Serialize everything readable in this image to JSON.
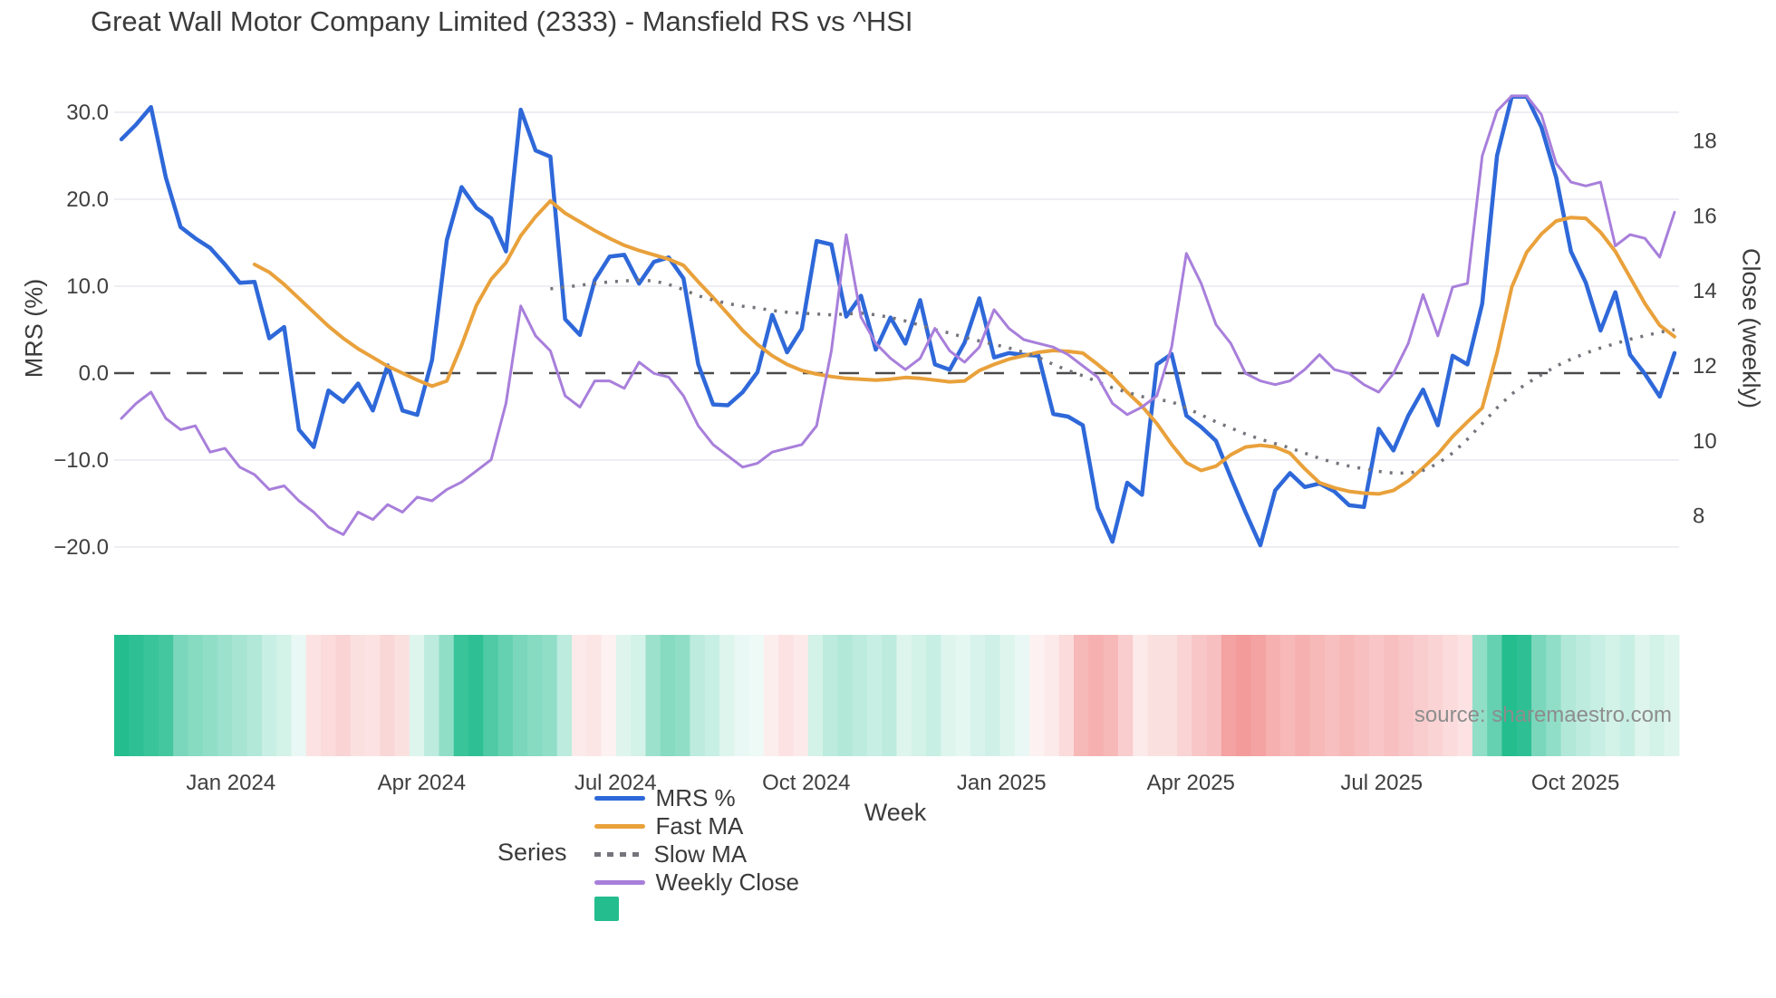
{
  "title": "Great Wall Motor Company Limited (2333) - Mansfield RS vs ^HSI",
  "source_note": "source: sharemaestro.com",
  "axes": {
    "left": {
      "title": "MRS (%)"
    },
    "right": {
      "title": "Close (weekly)"
    },
    "x": {
      "label": "Week"
    }
  },
  "legend": {
    "title": "Series",
    "items": [
      {
        "label": "MRS %",
        "color": "#2e68d9",
        "type": "line"
      },
      {
        "label": "Fast MA",
        "color": "#e9a13b",
        "type": "line"
      },
      {
        "label": "Slow MA",
        "color": "#74747c",
        "type": "dotted"
      },
      {
        "label": "Weekly Close",
        "color": "#a87fdb",
        "type": "line"
      },
      {
        "label": "",
        "color": "#23bd8e",
        "type": "square"
      }
    ]
  },
  "colors": {
    "grid": "#e9e9ef",
    "zero_line": "#4a4a4a",
    "tick_text": "#3f3f3f",
    "heat_positive": "#23bd8e",
    "heat_negative": "#ee7070"
  },
  "chart_data": {
    "type": "line",
    "title": "Great Wall Motor Company Limited (2333) - Mansfield RS vs ^HSI",
    "xlabel": "Week",
    "n_points": 106,
    "x_ticks": [
      {
        "label": "Jan 2024",
        "week": 7.4
      },
      {
        "label": "Apr 2024",
        "week": 20.3
      },
      {
        "label": "Jul 2024",
        "week": 33.4
      },
      {
        "label": "Oct 2024",
        "week": 46.3
      },
      {
        "label": "Jan 2025",
        "week": 59.5
      },
      {
        "label": "Apr 2025",
        "week": 72.3
      },
      {
        "label": "Jul 2025",
        "week": 85.2
      },
      {
        "label": "Oct 2025",
        "week": 98.3
      }
    ],
    "y_left": {
      "label": "MRS (%)",
      "ticks": [
        {
          "label": "30.0",
          "value": 30
        },
        {
          "label": "20.0",
          "value": 20
        },
        {
          "label": "10.0",
          "value": 10
        },
        {
          "label": "0.0",
          "value": 0
        },
        {
          "label": "−10.0",
          "value": -10
        },
        {
          "label": "−20.0",
          "value": -20
        }
      ],
      "ylim": [
        -24,
        34
      ]
    },
    "y_right": {
      "label": "Close (weekly)",
      "ticks": [
        {
          "label": "18",
          "value": 18
        },
        {
          "label": "16",
          "value": 16
        },
        {
          "label": "14",
          "value": 14
        },
        {
          "label": "12",
          "value": 12
        },
        {
          "label": "10",
          "value": 10
        },
        {
          "label": "8",
          "value": 8
        }
      ],
      "ylim": [
        7,
        19.5
      ]
    },
    "zero_line": true,
    "series": [
      {
        "name": "MRS %",
        "axis": "left",
        "color": "#2e68d9",
        "style": "solid",
        "width": 4.5,
        "values": [
          26.9,
          28.6,
          30.6,
          22.5,
          16.8,
          15.5,
          14.4,
          12.5,
          10.4,
          10.5,
          4.0,
          5.3,
          -6.5,
          -8.5,
          -2.0,
          -3.3,
          -1.2,
          -4.3,
          0.9,
          -4.3,
          -4.8,
          1.5,
          15.3,
          21.4,
          19.0,
          17.8,
          14.0,
          30.3,
          25.6,
          24.9,
          6.2,
          4.4,
          10.7,
          13.4,
          13.6,
          10.3,
          12.8,
          13.3,
          10.9,
          1.0,
          -3.6,
          -3.7,
          -2.2,
          0.1,
          6.7,
          2.4,
          5.1,
          15.2,
          14.8,
          6.5,
          8.9,
          2.7,
          6.4,
          3.4,
          8.4,
          1.0,
          0.4,
          3.5,
          8.6,
          1.8,
          2.3,
          2.1,
          2.0,
          -4.7,
          -5.0,
          -6.0,
          -15.5,
          -19.4,
          -12.6,
          -14.0,
          1.0,
          2.2,
          -4.9,
          -6.2,
          -7.8,
          -12.0,
          -16.0,
          -19.8,
          -13.5,
          -11.5,
          -13.1,
          -12.7,
          -13.6,
          -15.2,
          -15.4,
          -6.4,
          -8.9,
          -4.9,
          -1.9,
          -6.0,
          2.0,
          1.0,
          8.0,
          25.0,
          31.8,
          31.8,
          28.3,
          22.5,
          14.0,
          10.4,
          4.9,
          9.3,
          2.1,
          -0.1,
          -2.7,
          2.3
        ]
      },
      {
        "name": "Fast MA",
        "axis": "left",
        "color": "#e9a13b",
        "style": "solid",
        "width": 4,
        "values": [
          null,
          null,
          null,
          null,
          null,
          null,
          null,
          null,
          null,
          12.5,
          11.6,
          10.2,
          8.6,
          7.0,
          5.4,
          4.0,
          2.8,
          1.8,
          0.8,
          0.0,
          -0.8,
          -1.5,
          -0.9,
          3.2,
          7.8,
          10.8,
          12.7,
          15.8,
          18.0,
          19.8,
          18.4,
          17.4,
          16.4,
          15.5,
          14.7,
          14.1,
          13.6,
          13.1,
          12.4,
          10.5,
          8.7,
          6.8,
          4.9,
          3.3,
          2.0,
          1.0,
          0.3,
          -0.1,
          -0.4,
          -0.6,
          -0.7,
          -0.8,
          -0.7,
          -0.5,
          -0.6,
          -0.8,
          -1.0,
          -0.9,
          0.3,
          1.0,
          1.6,
          2.0,
          2.4,
          2.6,
          2.5,
          2.3,
          1.0,
          -0.4,
          -2.2,
          -3.8,
          -5.8,
          -8.2,
          -10.3,
          -11.2,
          -10.7,
          -9.4,
          -8.5,
          -8.3,
          -8.5,
          -9.2,
          -11.0,
          -12.6,
          -13.2,
          -13.6,
          -13.8,
          -13.9,
          -13.5,
          -12.4,
          -10.9,
          -9.3,
          -7.3,
          -5.6,
          -4.0,
          2.3,
          9.9,
          13.9,
          16.0,
          17.5,
          17.9,
          17.8,
          16.2,
          14.0,
          11.0,
          8.0,
          5.5,
          4.2
        ]
      },
      {
        "name": "Slow MA",
        "axis": "left",
        "color": "#74747c",
        "style": "dotted",
        "width": 3.5,
        "values": [
          null,
          null,
          null,
          null,
          null,
          null,
          null,
          null,
          null,
          null,
          null,
          null,
          null,
          null,
          null,
          null,
          null,
          null,
          null,
          null,
          null,
          null,
          null,
          null,
          null,
          null,
          null,
          null,
          null,
          9.7,
          9.9,
          10.1,
          10.3,
          10.5,
          10.6,
          10.7,
          10.6,
          10.2,
          9.6,
          8.9,
          8.4,
          8.0,
          7.7,
          7.5,
          7.2,
          7.0,
          6.9,
          6.8,
          6.7,
          6.8,
          6.9,
          6.7,
          6.4,
          6.0,
          5.5,
          5.0,
          4.6,
          4.1,
          3.7,
          3.3,
          2.9,
          2.4,
          1.8,
          1.0,
          0.3,
          -0.3,
          -1.0,
          -1.7,
          -2.2,
          -2.7,
          -3.0,
          -3.3,
          -4.0,
          -4.8,
          -5.6,
          -6.3,
          -7.0,
          -7.6,
          -8.1,
          -8.6,
          -9.2,
          -9.8,
          -10.3,
          -10.7,
          -11.0,
          -11.3,
          -11.5,
          -11.5,
          -11.2,
          -10.4,
          -9.2,
          -7.6,
          -5.8,
          -4.0,
          -2.4,
          -1.2,
          -0.2,
          0.8,
          1.6,
          2.3,
          2.9,
          3.4,
          3.9,
          4.3,
          4.7,
          5.0
        ]
      },
      {
        "name": "Weekly Close",
        "axis": "right",
        "color": "#a87fdb",
        "style": "solid",
        "width": 3,
        "values": [
          10.6,
          11.0,
          11.3,
          10.6,
          10.3,
          10.4,
          9.7,
          9.8,
          9.3,
          9.1,
          8.7,
          8.8,
          8.4,
          8.1,
          7.7,
          7.5,
          8.1,
          7.9,
          8.3,
          8.1,
          8.5,
          8.4,
          8.7,
          8.9,
          9.2,
          9.5,
          11.0,
          13.6,
          12.8,
          12.4,
          11.2,
          10.9,
          11.6,
          11.6,
          11.4,
          12.1,
          11.8,
          11.7,
          11.2,
          10.4,
          9.9,
          9.6,
          9.3,
          9.4,
          9.7,
          9.8,
          9.9,
          10.4,
          12.4,
          15.5,
          13.3,
          12.6,
          12.2,
          11.9,
          12.2,
          13.0,
          12.4,
          12.1,
          12.5,
          13.5,
          13.0,
          12.7,
          12.6,
          12.5,
          12.3,
          12.0,
          11.7,
          11.0,
          10.7,
          10.9,
          11.2,
          12.5,
          15.0,
          14.2,
          13.1,
          12.6,
          11.8,
          11.6,
          11.5,
          11.6,
          11.9,
          12.3,
          11.9,
          11.8,
          11.5,
          11.3,
          11.8,
          12.6,
          13.9,
          12.8,
          14.1,
          14.2,
          17.6,
          18.8,
          19.2,
          19.2,
          18.7,
          17.4,
          16.9,
          16.8,
          16.9,
          15.2,
          15.5,
          15.4,
          14.9,
          16.1
        ]
      }
    ],
    "heatmap": {
      "description": "weekly relative-strength heat ribbon, -1 red .. +1 green",
      "values": [
        1.0,
        0.95,
        0.9,
        0.85,
        0.6,
        0.55,
        0.5,
        0.45,
        0.4,
        0.35,
        0.25,
        0.2,
        0.1,
        -0.2,
        -0.25,
        -0.3,
        -0.22,
        -0.2,
        -0.28,
        -0.22,
        0.15,
        0.3,
        0.5,
        0.9,
        0.95,
        0.8,
        0.7,
        0.6,
        0.55,
        0.5,
        0.3,
        -0.15,
        -0.18,
        -0.1,
        0.15,
        0.2,
        0.45,
        0.55,
        0.5,
        0.3,
        0.25,
        0.15,
        0.1,
        0.08,
        -0.12,
        -0.2,
        -0.15,
        0.2,
        0.3,
        0.35,
        0.3,
        0.25,
        0.3,
        0.15,
        0.2,
        0.25,
        0.15,
        0.12,
        0.18,
        0.22,
        0.15,
        0.1,
        -0.1,
        -0.15,
        -0.25,
        -0.5,
        -0.55,
        -0.5,
        -0.35,
        -0.15,
        -0.22,
        -0.22,
        -0.3,
        -0.4,
        -0.45,
        -0.65,
        -0.7,
        -0.65,
        -0.55,
        -0.5,
        -0.55,
        -0.5,
        -0.45,
        -0.5,
        -0.45,
        -0.4,
        -0.45,
        -0.4,
        -0.35,
        -0.3,
        -0.25,
        -0.2,
        0.5,
        0.7,
        1.0,
        0.95,
        0.6,
        0.5,
        0.35,
        0.3,
        0.25,
        0.2,
        0.25,
        0.15,
        0.2,
        0.15
      ]
    }
  }
}
